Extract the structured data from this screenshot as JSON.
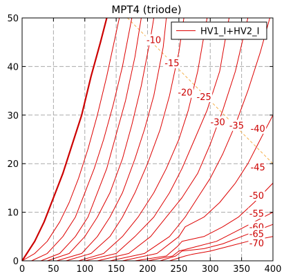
{
  "chart_data": {
    "type": "line",
    "title": "MPT4 (triode)",
    "xlabel": "",
    "ylabel": "",
    "xlim": [
      0,
      400
    ],
    "ylim": [
      0,
      50
    ],
    "x_ticks": [
      0,
      50,
      100,
      150,
      200,
      250,
      300,
      350,
      400
    ],
    "y_ticks": [
      0,
      10,
      20,
      30,
      40,
      50
    ],
    "grid": true,
    "legend": {
      "position": "top-right",
      "entries": [
        "HV1_I+HV2_I"
      ]
    },
    "colors": {
      "curve": "#dd0000",
      "bold_curve": "#cc0000",
      "load_line": "#f5b04a",
      "label": "#cc0000",
      "grid": "#aaaaaa"
    },
    "series": [
      {
        "label": "",
        "bold": true,
        "points": [
          [
            0,
            0
          ],
          [
            10,
            2
          ],
          [
            20,
            4
          ],
          [
            35,
            8
          ],
          [
            50,
            13
          ],
          [
            65,
            18
          ],
          [
            80,
            24
          ],
          [
            95,
            30
          ],
          [
            110,
            38
          ],
          [
            125,
            45
          ],
          [
            135,
            50
          ]
        ]
      },
      {
        "label": "",
        "points": [
          [
            0,
            0
          ],
          [
            20,
            1.5
          ],
          [
            40,
            4
          ],
          [
            60,
            8
          ],
          [
            75,
            12
          ],
          [
            90,
            17
          ],
          [
            105,
            23
          ],
          [
            120,
            30
          ],
          [
            135,
            38
          ],
          [
            150,
            47
          ],
          [
            155,
            50
          ]
        ]
      },
      {
        "label": "",
        "points": [
          [
            15,
            0
          ],
          [
            40,
            1.5
          ],
          [
            65,
            5
          ],
          [
            85,
            9
          ],
          [
            100,
            14
          ],
          [
            115,
            19
          ],
          [
            130,
            25
          ],
          [
            145,
            32
          ],
          [
            160,
            40
          ],
          [
            175,
            50
          ]
        ]
      },
      {
        "label": "-10",
        "points": [
          [
            30,
            0
          ],
          [
            60,
            1.5
          ],
          [
            85,
            5
          ],
          [
            105,
            9
          ],
          [
            120,
            14
          ],
          [
            135,
            19
          ],
          [
            150,
            26
          ],
          [
            165,
            33
          ],
          [
            180,
            42
          ],
          [
            190,
            50
          ]
        ]
      },
      {
        "label": "-15",
        "points": [
          [
            40,
            0
          ],
          [
            75,
            1.5
          ],
          [
            100,
            5
          ],
          [
            120,
            9
          ],
          [
            140,
            14
          ],
          [
            160,
            21
          ],
          [
            175,
            28
          ],
          [
            190,
            36
          ],
          [
            205,
            46
          ],
          [
            210,
            50
          ]
        ]
      },
      {
        "label": "-20",
        "points": [
          [
            55,
            0
          ],
          [
            95,
            1.5
          ],
          [
            120,
            5
          ],
          [
            140,
            9
          ],
          [
            160,
            14
          ],
          [
            180,
            21
          ],
          [
            195,
            27
          ],
          [
            210,
            34
          ],
          [
            225,
            44
          ],
          [
            230,
            50
          ]
        ]
      },
      {
        "label": "-25",
        "points": [
          [
            70,
            0
          ],
          [
            110,
            1.5
          ],
          [
            140,
            5
          ],
          [
            160,
            9
          ],
          [
            180,
            14
          ],
          [
            200,
            20
          ],
          [
            220,
            27
          ],
          [
            235,
            34
          ],
          [
            250,
            43
          ],
          [
            258,
            50
          ]
        ]
      },
      {
        "label": "-30",
        "points": [
          [
            90,
            0
          ],
          [
            130,
            1.5
          ],
          [
            160,
            5
          ],
          [
            185,
            9
          ],
          [
            210,
            14
          ],
          [
            230,
            19
          ],
          [
            250,
            25
          ],
          [
            265,
            31
          ],
          [
            280,
            39
          ],
          [
            295,
            50
          ]
        ]
      },
      {
        "label": "-35",
        "points": [
          [
            100,
            0
          ],
          [
            150,
            1.5
          ],
          [
            180,
            5
          ],
          [
            210,
            9
          ],
          [
            235,
            14
          ],
          [
            255,
            19
          ],
          [
            275,
            25
          ],
          [
            295,
            31
          ],
          [
            315,
            39
          ],
          [
            330,
            50
          ]
        ]
      },
      {
        "label": "-40",
        "points": [
          [
            120,
            0
          ],
          [
            170,
            1.5
          ],
          [
            205,
            5
          ],
          [
            230,
            9
          ],
          [
            255,
            13
          ],
          [
            280,
            18
          ],
          [
            300,
            24
          ],
          [
            320,
            31
          ],
          [
            340,
            39
          ],
          [
            360,
            50
          ]
        ]
      },
      {
        "label": "-45",
        "points": [
          [
            140,
            0
          ],
          [
            195,
            1.5
          ],
          [
            235,
            5
          ],
          [
            260,
            9
          ],
          [
            280,
            13
          ],
          [
            300,
            17
          ],
          [
            320,
            22
          ],
          [
            340,
            28
          ],
          [
            360,
            35
          ],
          [
            380,
            43
          ],
          [
            395,
            50
          ]
        ]
      },
      {
        "label": "-50",
        "points": [
          [
            160,
            0
          ],
          [
            215,
            1.5
          ],
          [
            250,
            5
          ],
          [
            255,
            6
          ],
          [
            260,
            7
          ],
          [
            290,
            9
          ],
          [
            315,
            12
          ],
          [
            340,
            16
          ],
          [
            360,
            20
          ],
          [
            380,
            25
          ],
          [
            400,
            30
          ]
        ]
      },
      {
        "label": "-55",
        "points": [
          [
            180,
            0
          ],
          [
            230,
            1
          ],
          [
            248,
            3
          ],
          [
            255,
            4
          ],
          [
            290,
            5
          ],
          [
            320,
            7
          ],
          [
            345,
            9
          ],
          [
            370,
            12
          ],
          [
            400,
            16
          ]
        ]
      },
      {
        "label": "-60",
        "points": [
          [
            200,
            0
          ],
          [
            240,
            1
          ],
          [
            250,
            2
          ],
          [
            280,
            3
          ],
          [
            310,
            4
          ],
          [
            340,
            6
          ],
          [
            370,
            8
          ],
          [
            400,
            10
          ]
        ]
      },
      {
        "label": "-65",
        "points": [
          [
            220,
            0
          ],
          [
            245,
            1
          ],
          [
            255,
            2
          ],
          [
            290,
            2.5
          ],
          [
            320,
            3.5
          ],
          [
            350,
            5
          ],
          [
            380,
            6.5
          ],
          [
            400,
            7.5
          ]
        ]
      },
      {
        "label": "-70",
        "points": [
          [
            235,
            0
          ],
          [
            260,
            1
          ],
          [
            270,
            1.3
          ],
          [
            300,
            2
          ],
          [
            330,
            3
          ],
          [
            360,
            4
          ],
          [
            400,
            5
          ]
        ]
      }
    ],
    "load_line": [
      [
        168,
        50
      ],
      [
        400,
        20
      ]
    ],
    "annotations": [
      {
        "text": "-10",
        "x": 210,
        "y": 45.5
      },
      {
        "text": "-15",
        "x": 239,
        "y": 40.8
      },
      {
        "text": "-20",
        "x": 260,
        "y": 34.7
      },
      {
        "text": "-25",
        "x": 290,
        "y": 33.8
      },
      {
        "text": "-30",
        "x": 312,
        "y": 28.6
      },
      {
        "text": "-35",
        "x": 342,
        "y": 27.9
      },
      {
        "text": "-40",
        "x": 376,
        "y": 27.3
      },
      {
        "text": "-45",
        "x": 376,
        "y": 19.3
      },
      {
        "text": "-50",
        "x": 374,
        "y": 13.5
      },
      {
        "text": "-55",
        "x": 374,
        "y": 9.8
      },
      {
        "text": "-60",
        "x": 374,
        "y": 7.0
      },
      {
        "text": "-65",
        "x": 374,
        "y": 5.6
      },
      {
        "text": "-70",
        "x": 374,
        "y": 3.7
      }
    ]
  }
}
